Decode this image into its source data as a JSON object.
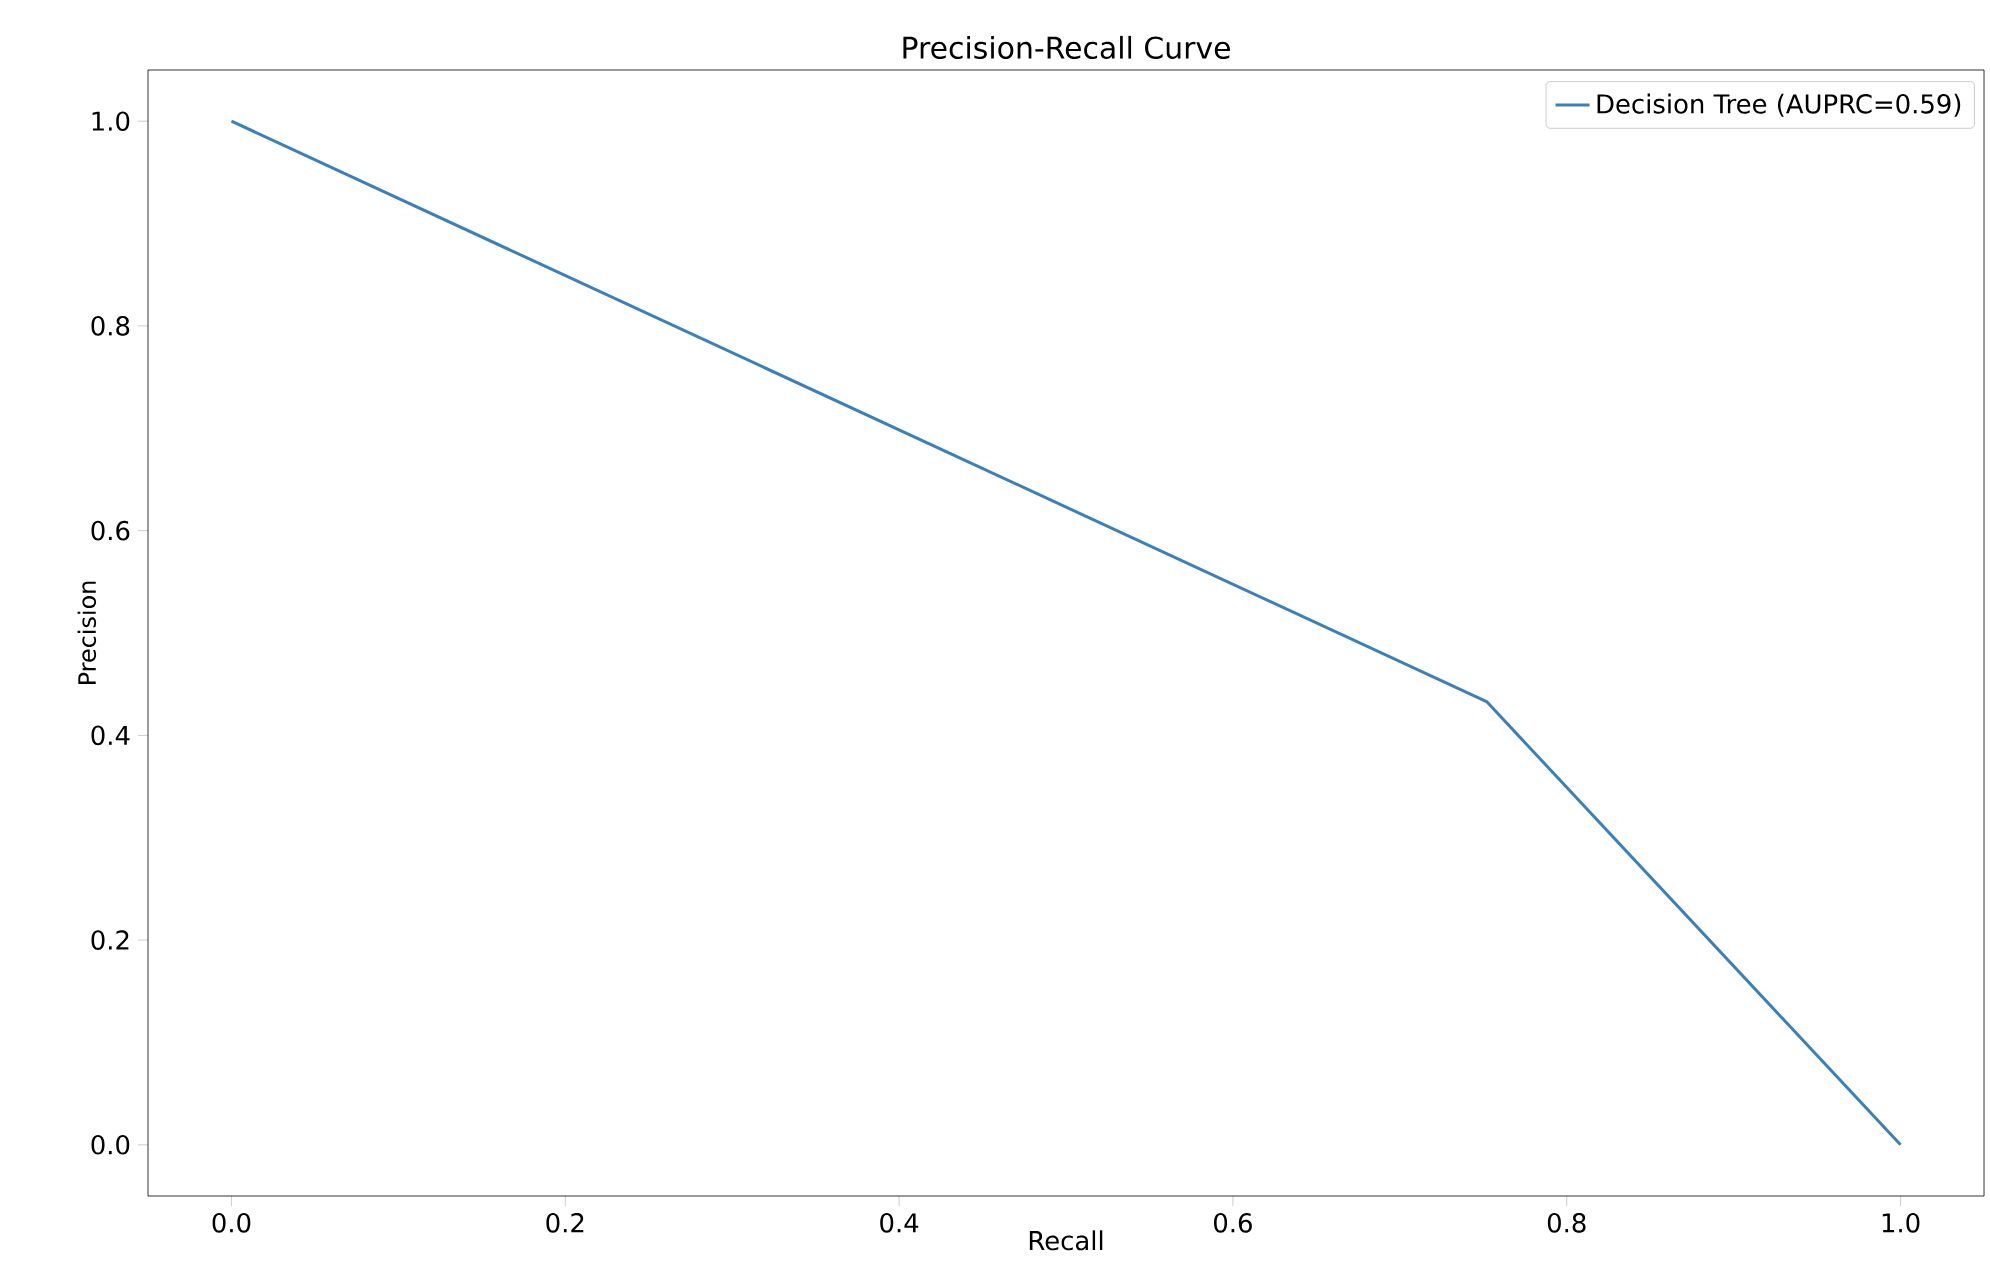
{
  "chart_data": {
    "type": "line",
    "title": "Precision-Recall Curve",
    "xlabel": "Recall",
    "ylabel": "Precision",
    "xlim": [
      -0.05,
      1.05
    ],
    "ylim": [
      -0.05,
      1.05
    ],
    "xticks": [
      {
        "value": 0,
        "label": "0.0"
      },
      {
        "value": 0.2,
        "label": "0.2"
      },
      {
        "value": 0.4,
        "label": "0.4"
      },
      {
        "value": 0.6,
        "label": "0.6"
      },
      {
        "value": 0.8,
        "label": "0.8"
      },
      {
        "value": 1,
        "label": "1.0"
      }
    ],
    "yticks": [
      {
        "value": 0,
        "label": "0.0"
      },
      {
        "value": 0.2,
        "label": "0.2"
      },
      {
        "value": 0.4,
        "label": "0.4"
      },
      {
        "value": 0.6,
        "label": "0.6"
      },
      {
        "value": 0.8,
        "label": "0.8"
      },
      {
        "value": 1,
        "label": "1.0"
      }
    ],
    "series": [
      {
        "name": "Decision Tree (AUPRC=0.59)",
        "color": "#3b80bb",
        "x": [
          0,
          0.752,
          1
        ],
        "values": [
          1,
          0.433,
          0.0
        ]
      }
    ],
    "legend": "top right",
    "grid": false,
    "marker": "none",
    "line_style": "solid"
  }
}
